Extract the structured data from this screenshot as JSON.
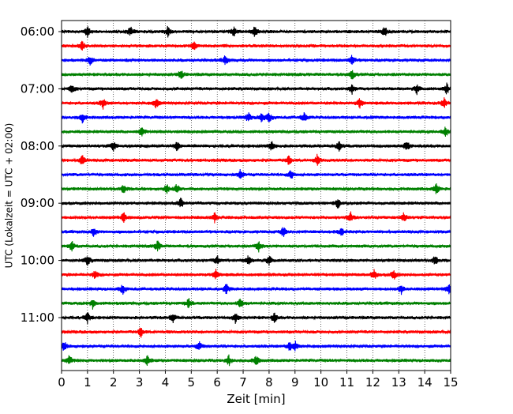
{
  "chart_data": {
    "type": "line",
    "xlabel": "Zeit  [min]",
    "ylabel": "UTC (Lokalzeit = UTC + 02:00)",
    "xlim": [
      0,
      15
    ],
    "x_ticks": [
      0,
      1,
      2,
      3,
      4,
      5,
      6,
      7,
      8,
      9,
      10,
      11,
      12,
      13,
      14,
      15
    ],
    "y_tick_labels": [
      "06:00",
      "07:00",
      "08:00",
      "09:00",
      "10:00",
      "11:00"
    ],
    "trace_minutes": 15,
    "traces_per_hour": 4,
    "start_time": "06:00",
    "colors": [
      "#000000",
      "#ff0000",
      "#0000ff",
      "#008000"
    ],
    "grid": "vertical dotted lines at each minute",
    "traces": [
      {
        "time": "06:00",
        "events": [
          1,
          2.65,
          4.1,
          6.65,
          7.45,
          12.45
        ]
      },
      {
        "time": "06:15",
        "events": [
          0.8,
          5.1
        ]
      },
      {
        "time": "06:30",
        "events": [
          1.1,
          6.3,
          11.2
        ]
      },
      {
        "time": "06:45",
        "events": [
          4.6,
          11.2
        ]
      },
      {
        "time": "07:00",
        "events": [
          0.4,
          11.2,
          13.7,
          14.85
        ]
      },
      {
        "time": "07:15",
        "events": [
          1.6,
          3.65,
          11.5,
          14.75
        ]
      },
      {
        "time": "07:30",
        "events": [
          0.8,
          7.2,
          7.7,
          8.0,
          9.35
        ]
      },
      {
        "time": "07:45",
        "events": [
          3.1,
          14.8
        ]
      },
      {
        "time": "08:00",
        "events": [
          2.0,
          4.45,
          8.1,
          10.7,
          13.3
        ]
      },
      {
        "time": "08:15",
        "events": [
          0.8,
          8.75,
          9.85
        ]
      },
      {
        "time": "08:30",
        "events": [
          6.9,
          8.85
        ]
      },
      {
        "time": "08:45",
        "events": [
          2.4,
          4.05,
          4.45,
          14.45
        ]
      },
      {
        "time": "09:00",
        "events": [
          4.6,
          10.65
        ]
      },
      {
        "time": "09:15",
        "events": [
          2.4,
          5.9,
          11.15,
          13.2
        ]
      },
      {
        "time": "09:30",
        "events": [
          1.25,
          8.55,
          10.8
        ]
      },
      {
        "time": "09:45",
        "events": [
          0.4,
          3.7,
          7.6
        ]
      },
      {
        "time": "10:00",
        "events": [
          1.0,
          6.0,
          7.2,
          8.0,
          14.4
        ]
      },
      {
        "time": "10:15",
        "events": [
          1.3,
          5.95,
          12.05,
          12.8
        ]
      },
      {
        "time": "10:30",
        "events": [
          2.35,
          6.35,
          13.1,
          14.95
        ]
      },
      {
        "time": "10:45",
        "events": [
          1.2,
          4.9,
          6.9
        ]
      },
      {
        "time": "11:00",
        "events": [
          1.0,
          4.3,
          6.7,
          8.2
        ]
      },
      {
        "time": "11:15",
        "events": [
          3.05
        ]
      },
      {
        "time": "11:30",
        "events": [
          0.1,
          5.3,
          8.8,
          9.0
        ]
      },
      {
        "time": "11:45",
        "events": [
          0.3,
          3.3,
          6.45,
          7.5
        ]
      }
    ]
  }
}
